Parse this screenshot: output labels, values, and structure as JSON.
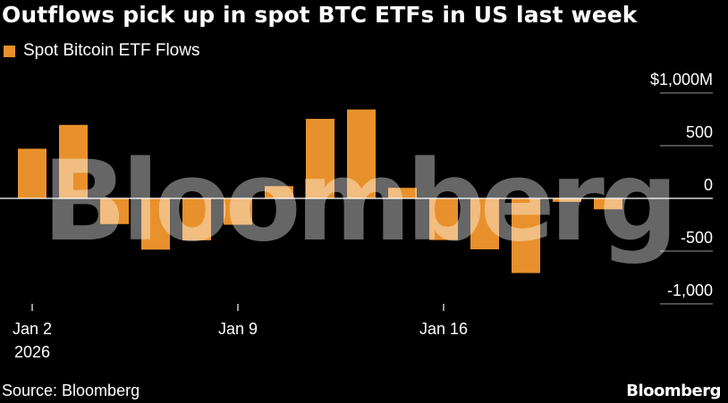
{
  "title": "Outflows pick up in spot BTC ETFs in US last week",
  "legend_label": "Spot Bitcoin ETF Flows",
  "source": "Source: Bloomberg",
  "brand": "Bloomberg",
  "watermark": "Bloomberg",
  "colors": {
    "background": "#000000",
    "bar": "#e8912c",
    "text": "#ffffff",
    "gridline": "#9a9a9a"
  },
  "chart_data": {
    "type": "bar",
    "series": [
      {
        "name": "Spot Bitcoin ETF Flows",
        "categories": [
          "2026-01-02",
          "2026-01-05",
          "2026-01-06",
          "2026-01-07",
          "2026-01-08",
          "2026-01-09",
          "2026-01-12",
          "2026-01-13",
          "2026-01-14",
          "2026-01-15",
          "2026-01-16",
          "2026-01-20",
          "2026-01-21",
          "2026-01-22",
          "2026-01-23"
        ],
        "values": [
          471,
          697,
          -244,
          -486,
          -398,
          -250,
          116,
          754,
          843,
          100,
          -395,
          -483,
          -708,
          -33,
          -104
        ]
      }
    ],
    "ylim": [
      -1000,
      1000
    ],
    "y_ticks": [
      {
        "value": 1000,
        "label": "$1,000M"
      },
      {
        "value": 500,
        "label": "500"
      },
      {
        "value": 0,
        "label": "0"
      },
      {
        "value": -500,
        "label": "-500"
      },
      {
        "value": -1000,
        "label": "-1,000"
      }
    ],
    "x_ticks": [
      {
        "index": 0,
        "label": "Jan 2",
        "sublabel": "2026"
      },
      {
        "index": 5,
        "label": "Jan 9",
        "sublabel": ""
      },
      {
        "index": 10,
        "label": "Jan 16",
        "sublabel": ""
      }
    ],
    "grid": true,
    "legend_position": "top-left"
  }
}
